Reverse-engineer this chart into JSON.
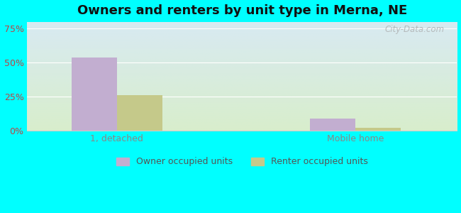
{
  "title": "Owners and renters by unit type in Merna, NE",
  "categories": [
    "1, detached",
    "Mobile home"
  ],
  "owner_values": [
    54,
    9
  ],
  "renter_values": [
    26,
    2
  ],
  "owner_color": "#c2aed0",
  "renter_color": "#c5c98a",
  "yticks": [
    0,
    25,
    50,
    75
  ],
  "ytick_labels": [
    "0%",
    "25%",
    "50%",
    "75%"
  ],
  "ylim": [
    0,
    80
  ],
  "background_top": "#d8eaf2",
  "background_bottom": "#d8eecc",
  "figure_bg": "#00ffff",
  "bar_width": 0.38,
  "group_positions": [
    1.0,
    3.0
  ],
  "xlim": [
    0.25,
    3.85
  ],
  "watermark": "City-Data.com",
  "legend_labels": [
    "Owner occupied units",
    "Renter occupied units"
  ],
  "title_fontsize": 13,
  "tick_fontsize": 9,
  "legend_fontsize": 9,
  "ytick_color": "#bb4444",
  "xtick_color": "#888888",
  "grid_color": "#ffffff",
  "spine_color": "#cccccc"
}
